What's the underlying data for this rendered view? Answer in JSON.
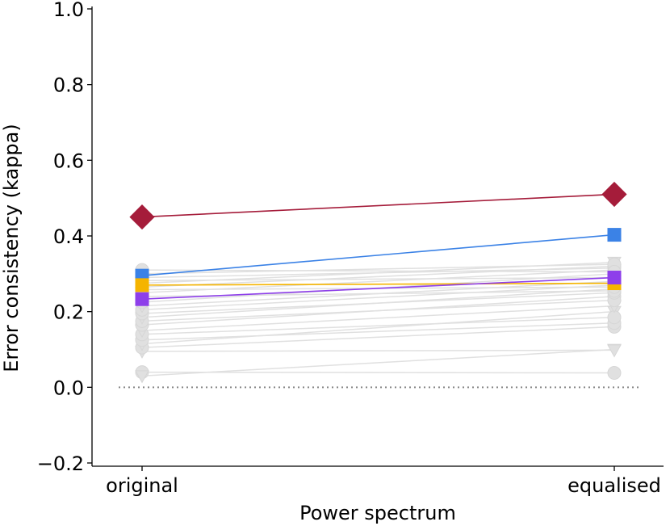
{
  "chart_data": {
    "type": "line",
    "xlabel": "Power spectrum",
    "ylabel": "Error consistency (kappa)",
    "categories": [
      "original",
      "equalised"
    ],
    "ylim": [
      -0.2,
      1.0
    ],
    "yticks": [
      -0.2,
      0.0,
      0.2,
      0.4,
      0.6,
      0.8,
      1.0
    ],
    "ytick_labels": [
      "−0.2",
      "0.0",
      "0.2",
      "0.4",
      "0.6",
      "0.8",
      "1.0"
    ],
    "reference_line": {
      "y": 0.0,
      "style": "dotted",
      "color": "#888888"
    },
    "grid": false,
    "highlighted_series": [
      {
        "marker": "diamond",
        "color": "#A51C3A",
        "values": [
          0.45,
          0.51
        ]
      },
      {
        "marker": "square",
        "color": "#3B82E6",
        "values": [
          0.295,
          0.403
        ]
      },
      {
        "marker": "square",
        "color": "#F5B400",
        "values": [
          0.27,
          0.275
        ]
      },
      {
        "marker": "square",
        "color": "#8E3FEA",
        "values": [
          0.233,
          0.29
        ]
      }
    ],
    "background_series_color": "#E0E0E0",
    "background_series": [
      {
        "marker": "circle",
        "values": [
          0.04,
          0.038
        ]
      },
      {
        "marker": "triangle",
        "values": [
          0.03,
          0.1
        ]
      },
      {
        "marker": "triangle",
        "values": [
          0.095,
          0.098
        ]
      },
      {
        "marker": "circle",
        "values": [
          0.105,
          0.16
        ]
      },
      {
        "marker": "triangle",
        "values": [
          0.115,
          0.2
        ]
      },
      {
        "marker": "circle",
        "values": [
          0.125,
          0.17
        ]
      },
      {
        "marker": "circle",
        "values": [
          0.14,
          0.185
        ]
      },
      {
        "marker": "triangle",
        "values": [
          0.15,
          0.215
        ]
      },
      {
        "marker": "circle",
        "values": [
          0.165,
          0.24
        ]
      },
      {
        "marker": "circle",
        "values": [
          0.175,
          0.23
        ]
      },
      {
        "marker": "triangle",
        "values": [
          0.185,
          0.26
        ]
      },
      {
        "marker": "circle",
        "values": [
          0.195,
          0.25
        ]
      },
      {
        "marker": "circle",
        "values": [
          0.205,
          0.27
        ]
      },
      {
        "marker": "triangle",
        "values": [
          0.215,
          0.28
        ]
      },
      {
        "marker": "circle",
        "values": [
          0.225,
          0.3
        ]
      },
      {
        "marker": "circle",
        "values": [
          0.24,
          0.255
        ]
      },
      {
        "marker": "triangle",
        "values": [
          0.25,
          0.31
        ]
      },
      {
        "marker": "circle",
        "values": [
          0.258,
          0.265
        ]
      },
      {
        "marker": "circle",
        "values": [
          0.265,
          0.32
        ]
      },
      {
        "marker": "triangle",
        "values": [
          0.275,
          0.33
        ]
      },
      {
        "marker": "circle",
        "values": [
          0.282,
          0.29
        ]
      },
      {
        "marker": "circle",
        "values": [
          0.29,
          0.315
        ]
      },
      {
        "marker": "circle",
        "values": [
          0.3,
          0.325
        ]
      },
      {
        "marker": "circle",
        "values": [
          0.31,
          0.305
        ]
      }
    ]
  }
}
